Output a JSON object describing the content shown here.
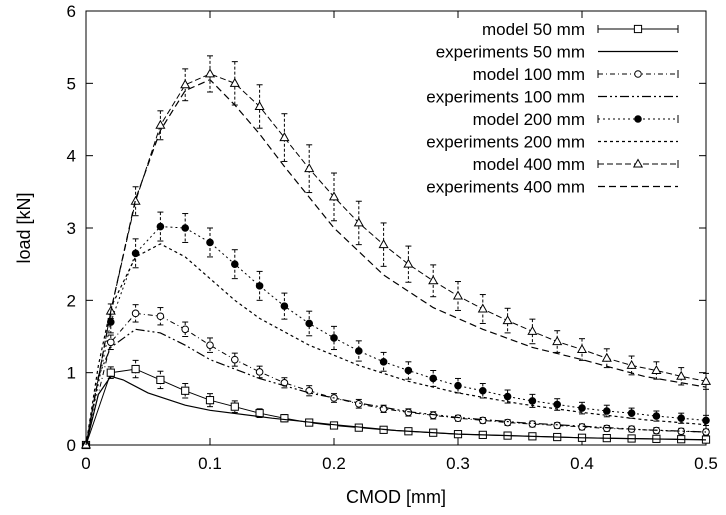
{
  "chart_data": {
    "type": "line",
    "xlabel": "CMOD [mm]",
    "ylabel": "load [kN]",
    "xlim": [
      0,
      0.5
    ],
    "ylim": [
      0,
      6
    ],
    "x_ticks": [
      "0",
      "0.1",
      "0.2",
      "0.3",
      "0.4",
      "0.5"
    ],
    "y_ticks": [
      "0",
      "1",
      "2",
      "3",
      "4",
      "5",
      "6"
    ],
    "legend_position": "top-right",
    "grid": false,
    "series": [
      {
        "name": "model 50 mm",
        "kind": "model",
        "marker": "square",
        "x": [
          0,
          0.02,
          0.04,
          0.06,
          0.08,
          0.1,
          0.12,
          0.14,
          0.16,
          0.18,
          0.2,
          0.22,
          0.24,
          0.26,
          0.28,
          0.3,
          0.32,
          0.34,
          0.36,
          0.38,
          0.4,
          0.42,
          0.44,
          0.46,
          0.48,
          0.5
        ],
        "y": [
          0,
          1.0,
          1.05,
          0.9,
          0.75,
          0.62,
          0.53,
          0.44,
          0.37,
          0.31,
          0.27,
          0.24,
          0.21,
          0.19,
          0.17,
          0.15,
          0.14,
          0.13,
          0.12,
          0.11,
          0.1,
          0.095,
          0.09,
          0.085,
          0.08,
          0.075
        ],
        "err": [
          0,
          0.08,
          0.12,
          0.12,
          0.1,
          0.09,
          0.08,
          0.06,
          0.05,
          0.04,
          0.04,
          0.03,
          0.03,
          0.03,
          0.02,
          0.02,
          0.02,
          0.02,
          0.02,
          0.02,
          0.02,
          0.02,
          0.02,
          0.02,
          0.02,
          0.02
        ]
      },
      {
        "name": "experiments 50 mm",
        "kind": "experiment",
        "dash": "",
        "x": [
          0,
          0.01,
          0.02,
          0.03,
          0.05,
          0.08,
          0.1,
          0.15,
          0.2,
          0.25,
          0.3,
          0.4,
          0.5
        ],
        "y": [
          0,
          0.7,
          0.95,
          0.9,
          0.72,
          0.55,
          0.48,
          0.37,
          0.28,
          0.2,
          0.15,
          0.1,
          0.07
        ]
      },
      {
        "name": "model 100 mm",
        "kind": "model",
        "marker": "circle-open",
        "x": [
          0,
          0.02,
          0.04,
          0.06,
          0.08,
          0.1,
          0.12,
          0.14,
          0.16,
          0.18,
          0.2,
          0.22,
          0.24,
          0.26,
          0.28,
          0.3,
          0.32,
          0.34,
          0.36,
          0.38,
          0.4,
          0.42,
          0.44,
          0.46,
          0.48,
          0.5
        ],
        "y": [
          0,
          1.42,
          1.82,
          1.78,
          1.6,
          1.38,
          1.18,
          1.01,
          0.86,
          0.75,
          0.65,
          0.57,
          0.5,
          0.45,
          0.41,
          0.37,
          0.34,
          0.31,
          0.29,
          0.27,
          0.25,
          0.23,
          0.22,
          0.2,
          0.19,
          0.18
        ],
        "err": [
          0,
          0.1,
          0.12,
          0.12,
          0.1,
          0.1,
          0.09,
          0.08,
          0.07,
          0.07,
          0.06,
          0.06,
          0.05,
          0.05,
          0.05,
          0.04,
          0.04,
          0.04,
          0.04,
          0.04,
          0.04,
          0.04,
          0.04,
          0.04,
          0.04,
          0.04
        ]
      },
      {
        "name": "experiments 100 mm",
        "kind": "experiment",
        "dash": "9 3 2 3 2 3",
        "x": [
          0,
          0.01,
          0.02,
          0.04,
          0.06,
          0.08,
          0.1,
          0.14,
          0.18,
          0.22,
          0.26,
          0.3,
          0.35,
          0.4,
          0.45,
          0.5
        ],
        "y": [
          0,
          0.95,
          1.35,
          1.6,
          1.55,
          1.38,
          1.18,
          0.92,
          0.72,
          0.58,
          0.46,
          0.38,
          0.31,
          0.26,
          0.21,
          0.18
        ]
      },
      {
        "name": "model 200 mm",
        "kind": "model",
        "marker": "circle-filled",
        "x": [
          0,
          0.02,
          0.04,
          0.06,
          0.08,
          0.1,
          0.12,
          0.14,
          0.16,
          0.18,
          0.2,
          0.22,
          0.24,
          0.26,
          0.28,
          0.3,
          0.32,
          0.34,
          0.36,
          0.38,
          0.4,
          0.42,
          0.44,
          0.46,
          0.48,
          0.5
        ],
        "y": [
          0,
          1.7,
          2.65,
          3.02,
          3.0,
          2.8,
          2.5,
          2.2,
          1.92,
          1.68,
          1.48,
          1.3,
          1.15,
          1.03,
          0.92,
          0.82,
          0.75,
          0.67,
          0.61,
          0.56,
          0.51,
          0.47,
          0.44,
          0.4,
          0.37,
          0.34
        ],
        "err": [
          0,
          0.15,
          0.2,
          0.2,
          0.2,
          0.2,
          0.2,
          0.2,
          0.18,
          0.17,
          0.16,
          0.14,
          0.13,
          0.12,
          0.11,
          0.1,
          0.1,
          0.09,
          0.09,
          0.08,
          0.08,
          0.08,
          0.07,
          0.07,
          0.07,
          0.07
        ]
      },
      {
        "name": "experiments 200 mm",
        "kind": "experiment",
        "dash": "3 3",
        "x": [
          0,
          0.01,
          0.02,
          0.04,
          0.06,
          0.08,
          0.1,
          0.12,
          0.14,
          0.18,
          0.22,
          0.26,
          0.3,
          0.35,
          0.4,
          0.45,
          0.5
        ],
        "y": [
          0,
          1.1,
          1.9,
          2.6,
          2.78,
          2.6,
          2.3,
          2.0,
          1.75,
          1.38,
          1.1,
          0.88,
          0.72,
          0.57,
          0.45,
          0.35,
          0.28
        ]
      },
      {
        "name": "model 400 mm",
        "kind": "model",
        "marker": "triangle",
        "x": [
          0,
          0.02,
          0.04,
          0.06,
          0.08,
          0.1,
          0.12,
          0.14,
          0.16,
          0.18,
          0.2,
          0.22,
          0.24,
          0.26,
          0.28,
          0.3,
          0.32,
          0.34,
          0.36,
          0.38,
          0.4,
          0.42,
          0.44,
          0.46,
          0.48,
          0.5
        ],
        "y": [
          0,
          1.85,
          3.37,
          4.42,
          4.98,
          5.13,
          5.0,
          4.68,
          4.25,
          3.82,
          3.43,
          3.07,
          2.77,
          2.5,
          2.27,
          2.06,
          1.88,
          1.72,
          1.57,
          1.43,
          1.32,
          1.2,
          1.1,
          1.03,
          0.95,
          0.88
        ],
        "err": [
          0,
          0.1,
          0.2,
          0.2,
          0.22,
          0.25,
          0.3,
          0.3,
          0.33,
          0.33,
          0.33,
          0.3,
          0.3,
          0.25,
          0.22,
          0.2,
          0.2,
          0.17,
          0.17,
          0.15,
          0.15,
          0.13,
          0.13,
          0.12,
          0.12,
          0.11
        ]
      },
      {
        "name": "experiments 400 mm",
        "kind": "experiment",
        "dash": "7 4",
        "x": [
          0,
          0.02,
          0.04,
          0.06,
          0.08,
          0.1,
          0.12,
          0.14,
          0.16,
          0.2,
          0.24,
          0.28,
          0.32,
          0.36,
          0.4,
          0.45,
          0.5
        ],
        "y": [
          0,
          1.85,
          3.4,
          4.35,
          4.9,
          5.05,
          4.7,
          4.3,
          3.85,
          3.0,
          2.35,
          1.9,
          1.6,
          1.35,
          1.18,
          0.95,
          0.8
        ]
      }
    ]
  }
}
